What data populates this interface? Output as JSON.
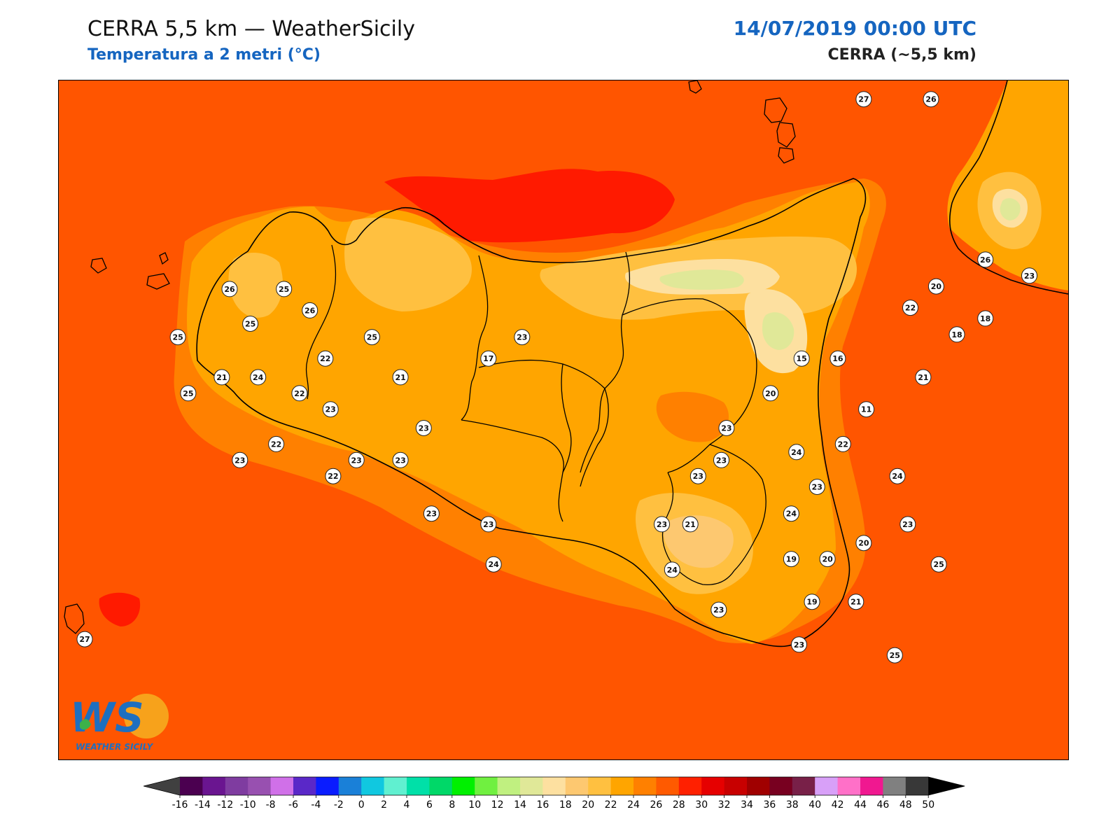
{
  "header": {
    "title": "CERRA 5,5 km — WeatherSicily",
    "subtitle": "Temperatura a 2 metri (°C)",
    "datetime": "14/07/2019 00:00 UTC",
    "model_label": "CERRA (~5,5 km)"
  },
  "colors": {
    "accent_blue": "#1565c0",
    "sea_base": "#ff5500",
    "land_base": "#ffa500",
    "hot_patch": "#ff1a00"
  },
  "logo": {
    "letters": "WS",
    "wordmark": "WEATHER SICILY"
  },
  "stations": [
    {
      "v": 27,
      "lon": 14.96,
      "lat": 38.8
    },
    {
      "v": 26,
      "lon": 15.22,
      "lat": 38.8
    },
    {
      "v": 26,
      "lon": 15.43,
      "lat": 38.2
    },
    {
      "v": 23,
      "lon": 15.6,
      "lat": 38.14
    },
    {
      "v": 20,
      "lon": 15.24,
      "lat": 38.1
    },
    {
      "v": 22,
      "lon": 15.14,
      "lat": 38.02
    },
    {
      "v": 18,
      "lon": 15.32,
      "lat": 37.92
    },
    {
      "v": 18,
      "lon": 15.43,
      "lat": 37.98
    },
    {
      "v": 26,
      "lon": 12.51,
      "lat": 38.09
    },
    {
      "v": 25,
      "lon": 12.72,
      "lat": 38.09
    },
    {
      "v": 26,
      "lon": 12.82,
      "lat": 38.01
    },
    {
      "v": 25,
      "lon": 12.59,
      "lat": 37.96
    },
    {
      "v": 25,
      "lon": 12.31,
      "lat": 37.91
    },
    {
      "v": 25,
      "lon": 13.06,
      "lat": 37.91
    },
    {
      "v": 23,
      "lon": 13.64,
      "lat": 37.91
    },
    {
      "v": 17,
      "lon": 13.51,
      "lat": 37.83
    },
    {
      "v": 15,
      "lon": 14.72,
      "lat": 37.83
    },
    {
      "v": 16,
      "lon": 14.86,
      "lat": 37.83
    },
    {
      "v": 21,
      "lon": 12.48,
      "lat": 37.76
    },
    {
      "v": 24,
      "lon": 12.62,
      "lat": 37.76
    },
    {
      "v": 22,
      "lon": 12.88,
      "lat": 37.83
    },
    {
      "v": 21,
      "lon": 13.17,
      "lat": 37.76
    },
    {
      "v": 21,
      "lon": 15.19,
      "lat": 37.76
    },
    {
      "v": 25,
      "lon": 12.35,
      "lat": 37.7
    },
    {
      "v": 22,
      "lon": 12.78,
      "lat": 37.7
    },
    {
      "v": 20,
      "lon": 14.6,
      "lat": 37.7
    },
    {
      "v": 11,
      "lon": 14.97,
      "lat": 37.64
    },
    {
      "v": 23,
      "lon": 12.9,
      "lat": 37.64
    },
    {
      "v": 23,
      "lon": 13.26,
      "lat": 37.57
    },
    {
      "v": 23,
      "lon": 14.43,
      "lat": 37.57
    },
    {
      "v": 22,
      "lon": 12.69,
      "lat": 37.51
    },
    {
      "v": 22,
      "lon": 14.88,
      "lat": 37.51
    },
    {
      "v": 23,
      "lon": 12.55,
      "lat": 37.45
    },
    {
      "v": 24,
      "lon": 14.7,
      "lat": 37.48
    },
    {
      "v": 23,
      "lon": 13.0,
      "lat": 37.45
    },
    {
      "v": 23,
      "lon": 13.17,
      "lat": 37.45
    },
    {
      "v": 23,
      "lon": 14.41,
      "lat": 37.45
    },
    {
      "v": 22,
      "lon": 12.91,
      "lat": 37.39
    },
    {
      "v": 23,
      "lon": 14.32,
      "lat": 37.39
    },
    {
      "v": 24,
      "lon": 15.09,
      "lat": 37.39
    },
    {
      "v": 23,
      "lon": 14.78,
      "lat": 37.35
    },
    {
      "v": 24,
      "lon": 14.68,
      "lat": 37.25
    },
    {
      "v": 23,
      "lon": 13.29,
      "lat": 37.25
    },
    {
      "v": 23,
      "lon": 13.51,
      "lat": 37.21
    },
    {
      "v": 23,
      "lon": 14.18,
      "lat": 37.21
    },
    {
      "v": 21,
      "lon": 14.29,
      "lat": 37.21
    },
    {
      "v": 23,
      "lon": 15.13,
      "lat": 37.21
    },
    {
      "v": 20,
      "lon": 14.96,
      "lat": 37.14
    },
    {
      "v": 19,
      "lon": 14.68,
      "lat": 37.08
    },
    {
      "v": 20,
      "lon": 14.82,
      "lat": 37.08
    },
    {
      "v": 24,
      "lon": 13.53,
      "lat": 37.06
    },
    {
      "v": 24,
      "lon": 14.22,
      "lat": 37.04
    },
    {
      "v": 25,
      "lon": 15.25,
      "lat": 37.06
    },
    {
      "v": 23,
      "lon": 14.4,
      "lat": 36.89
    },
    {
      "v": 19,
      "lon": 14.76,
      "lat": 36.92
    },
    {
      "v": 21,
      "lon": 14.93,
      "lat": 36.92
    },
    {
      "v": 27,
      "lon": 11.95,
      "lat": 36.78
    },
    {
      "v": 23,
      "lon": 14.71,
      "lat": 36.76
    },
    {
      "v": 25,
      "lon": 15.08,
      "lat": 36.72
    }
  ],
  "colorbar": {
    "ticks": [
      "-16",
      "-14",
      "-12",
      "-10",
      "-8",
      "-6",
      "-4",
      "-2",
      "0",
      "2",
      "4",
      "6",
      "8",
      "10",
      "12",
      "14",
      "16",
      "18",
      "20",
      "22",
      "24",
      "26",
      "28",
      "30",
      "32",
      "34",
      "36",
      "38",
      "40",
      "42",
      "44",
      "46",
      "48",
      "50"
    ],
    "colors": [
      "#4b0050",
      "#6a1590",
      "#7f3ca0",
      "#9850b0",
      "#d070e8",
      "#5a28c8",
      "#0a1cff",
      "#1a80d8",
      "#10c8e0",
      "#60f0d0",
      "#00e0a8",
      "#00d868",
      "#00f000",
      "#70f040",
      "#c0f080",
      "#e0e898",
      "#fde0a0",
      "#fdc870",
      "#ffc040",
      "#ffa500",
      "#ff8000",
      "#ff5a00",
      "#ff2000",
      "#e60000",
      "#c80000",
      "#a00000",
      "#780020",
      "#782048",
      "#d8a0f8",
      "#ff70c8",
      "#f01890",
      "#808080",
      "#383838"
    ],
    "under_color": "#404040",
    "over_color": "#000000"
  }
}
